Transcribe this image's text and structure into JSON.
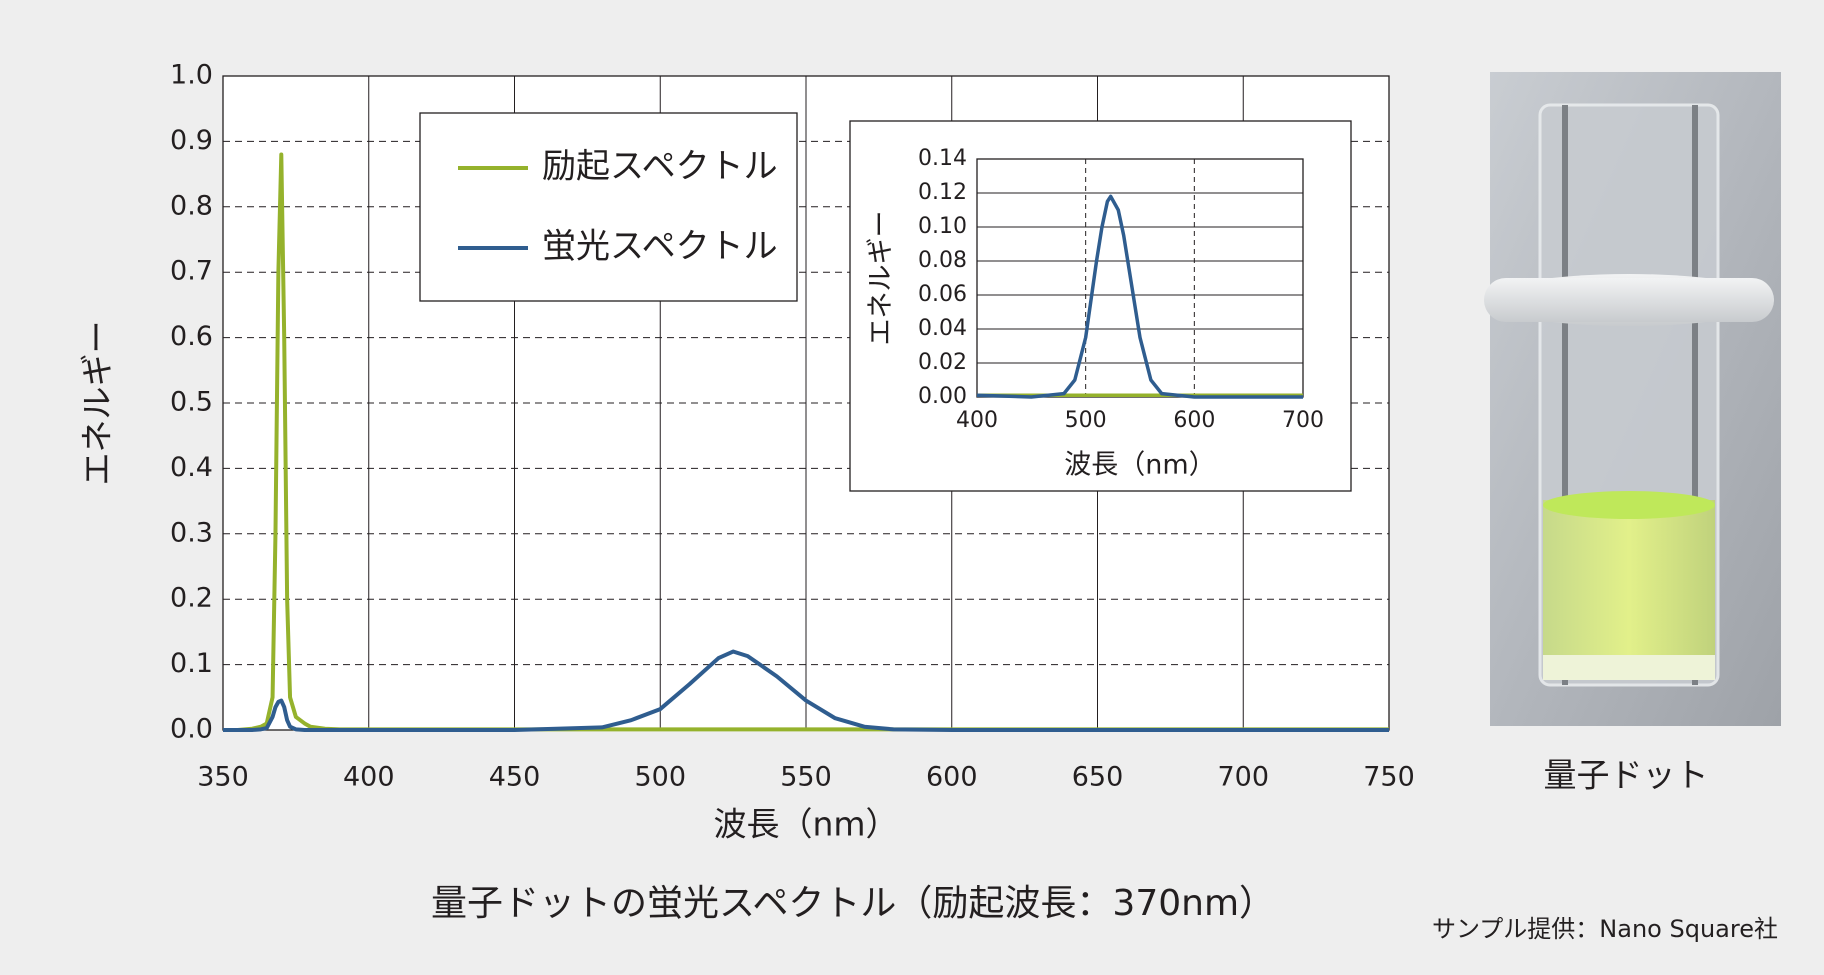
{
  "chart_data": [
    {
      "type": "line",
      "x_label": "波長（nm）",
      "y_label": "エネルギー",
      "x": [
        350,
        355,
        360,
        363,
        365,
        367,
        368,
        369,
        370,
        371,
        372,
        373,
        375,
        378,
        380,
        385,
        390,
        400,
        450,
        480,
        490,
        500,
        510,
        520,
        525,
        530,
        540,
        550,
        560,
        570,
        580,
        600,
        650,
        700,
        750
      ],
      "series": [
        {
          "name": "励起スペクトル",
          "color": "#95b22c",
          "values": [
            0,
            0,
            0.002,
            0.005,
            0.01,
            0.05,
            0.3,
            0.7,
            0.88,
            0.6,
            0.2,
            0.05,
            0.02,
            0.01,
            0.005,
            0.002,
            0.001,
            0.001,
            0.001,
            0.001,
            0.001,
            0.001,
            0.001,
            0.001,
            0.001,
            0.001,
            0.001,
            0.001,
            0.001,
            0.001,
            0.001,
            0.001,
            0.001,
            0.001,
            0.001
          ]
        },
        {
          "name": "蛍光スペクトル",
          "color": "#2f5d8f",
          "values": [
            0,
            0,
            0,
            0.001,
            0.003,
            0.02,
            0.035,
            0.043,
            0.045,
            0.035,
            0.015,
            0.005,
            0.001,
            0,
            0,
            0,
            0,
            0,
            0,
            0.004,
            0.015,
            0.032,
            0.07,
            0.11,
            0.12,
            0.113,
            0.082,
            0.045,
            0.018,
            0.005,
            0.001,
            0,
            0,
            0,
            0
          ]
        }
      ],
      "xlim": [
        350,
        750
      ],
      "xticks": [
        350,
        400,
        450,
        500,
        550,
        600,
        650,
        700,
        750
      ],
      "ylim": [
        0,
        1
      ],
      "yticks": [
        {
          "value": 0,
          "label": "0.0"
        },
        {
          "value": 0.1,
          "label": "0.1"
        },
        {
          "value": 0.2,
          "label": "0.2"
        },
        {
          "value": 0.3,
          "label": "0.3"
        },
        {
          "value": 0.4,
          "label": "0.4"
        },
        {
          "value": 0.5,
          "label": "0.5"
        },
        {
          "value": 0.6,
          "label": "0.6"
        },
        {
          "value": 0.7,
          "label": "0.7"
        },
        {
          "value": 0.8,
          "label": "0.8"
        },
        {
          "value": 0.9,
          "label": "0.9"
        },
        {
          "value": 1,
          "label": "1.0"
        }
      ],
      "grid": true,
      "legend": "upper left"
    },
    {
      "type": "line",
      "x_label": "波長（nm）",
      "y_label": "エネルギー",
      "x": [
        400,
        450,
        480,
        490,
        500,
        510,
        515,
        520,
        523,
        530,
        535,
        540,
        550,
        560,
        570,
        600,
        650,
        700
      ],
      "series": [
        {
          "name": "励起スペクトル",
          "color": "#95b22c",
          "values": [
            0.001,
            0.001,
            0.001,
            0.001,
            0.001,
            0.001,
            0.001,
            0.001,
            0.001,
            0.001,
            0.001,
            0.001,
            0.001,
            0.001,
            0.001,
            0.001,
            0.001,
            0.001
          ]
        },
        {
          "name": "蛍光スペクトル",
          "color": "#2f5d8f",
          "values": [
            0.001,
            0,
            0.002,
            0.01,
            0.035,
            0.08,
            0.1,
            0.115,
            0.118,
            0.11,
            0.095,
            0.075,
            0.035,
            0.01,
            0.002,
            0,
            0,
            0
          ]
        }
      ],
      "xlim": [
        400,
        700
      ],
      "xticks": [
        400,
        500,
        600,
        700
      ],
      "ylim": [
        0,
        0.14
      ],
      "yticks": [
        {
          "value": 0,
          "label": "0.00"
        },
        {
          "value": 0.02,
          "label": "0.02"
        },
        {
          "value": 0.04,
          "label": "0.04"
        },
        {
          "value": 0.06,
          "label": "0.06"
        },
        {
          "value": 0.08,
          "label": "0.08"
        },
        {
          "value": 0.1,
          "label": "0.10"
        },
        {
          "value": 0.12,
          "label": "0.12"
        },
        {
          "value": 0.14,
          "label": "0.14"
        }
      ],
      "grid": true
    }
  ],
  "title": "量子ドットの蛍光スペクトル（励起波長：370nm）",
  "photo_caption": "量子ドット",
  "credit": "サンプル提供：Nano Square社"
}
